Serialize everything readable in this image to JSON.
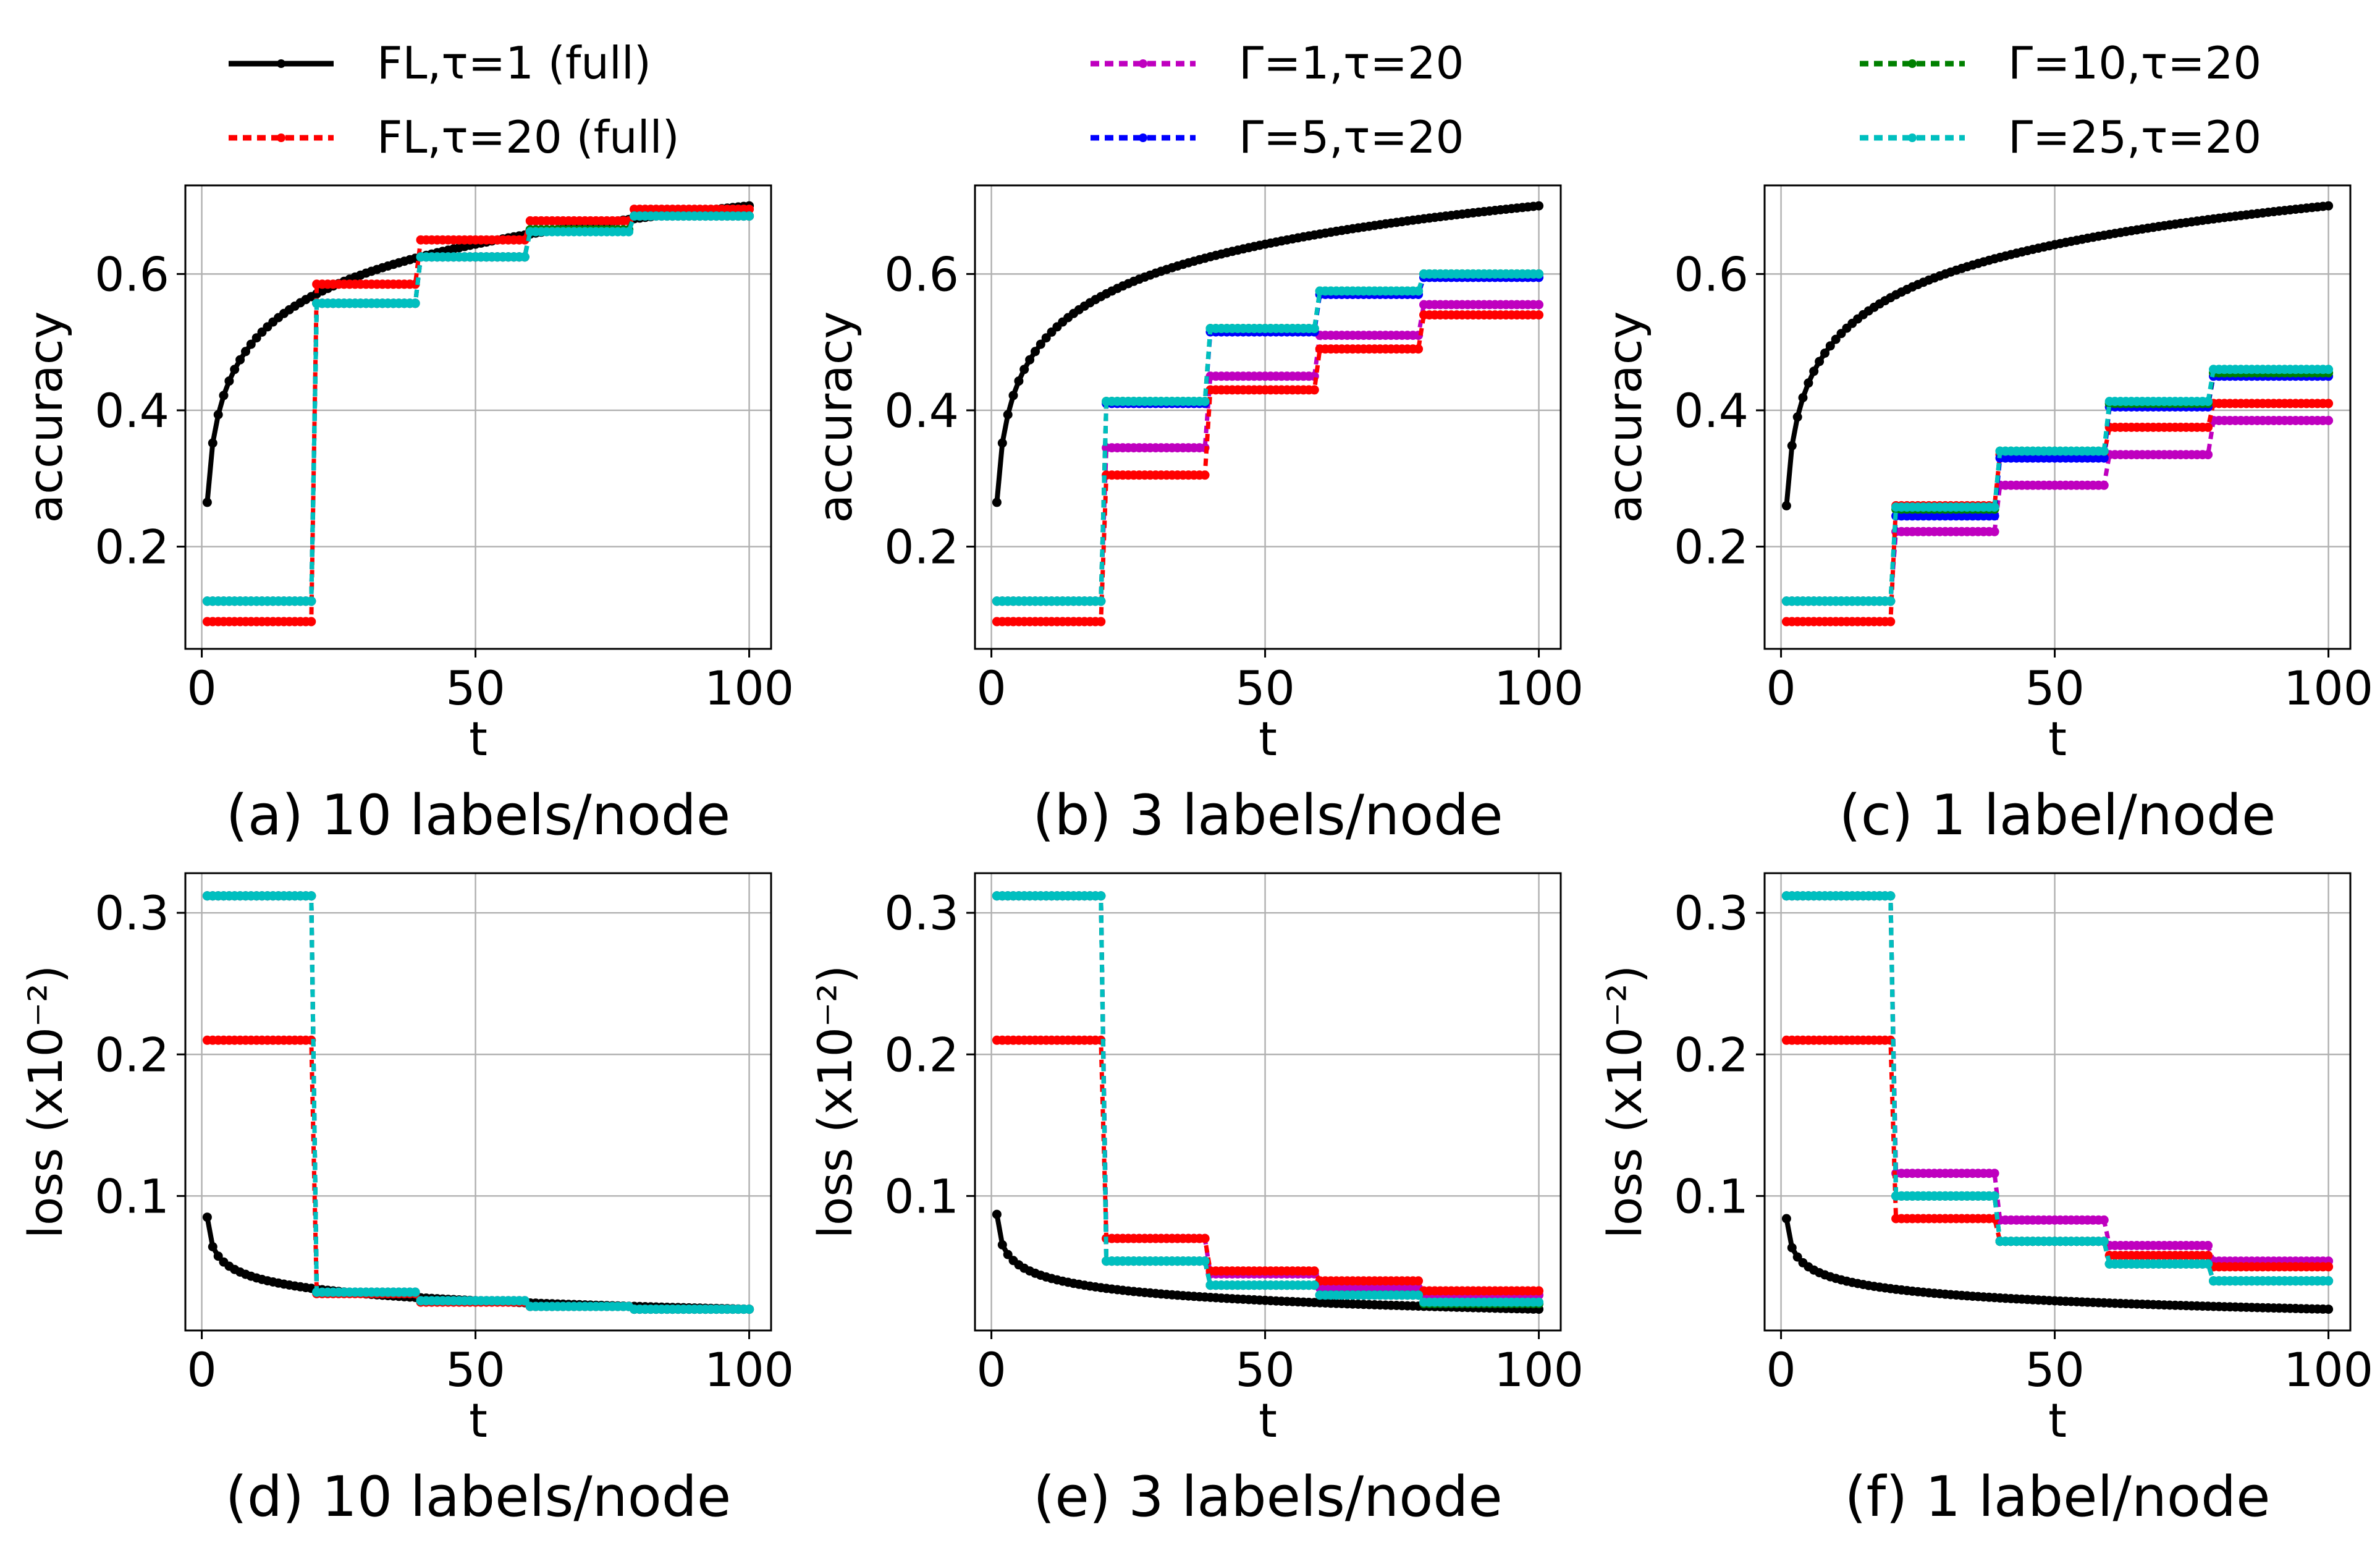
{
  "legend": [
    {
      "label": "FL,τ=1 (full)",
      "color": "#000000",
      "style": "solid"
    },
    {
      "label": "FL,τ=20 (full)",
      "color": "#ff0000",
      "style": "dotted"
    },
    {
      "label": "Γ=1,τ=20",
      "color": "#bf00bf",
      "style": "dotted"
    },
    {
      "label": "Γ=5,τ=20",
      "color": "#0000ff",
      "style": "dotted"
    },
    {
      "label": "Γ=10,τ=20",
      "color": "#008000",
      "style": "dotted"
    },
    {
      "label": "Γ=25,τ=20",
      "color": "#00bfbf",
      "style": "dotted"
    }
  ],
  "chart_data": [
    {
      "type": "line",
      "caption": "(a) 10 labels/node",
      "xlabel": "t",
      "ylabel": "accuracy",
      "xlim": [
        -3,
        104
      ],
      "ylim": [
        0.05,
        0.73
      ],
      "xticks": [
        0,
        50,
        100
      ],
      "yticks": [
        0.2,
        0.4,
        0.6
      ],
      "grid": true,
      "metric": "acc",
      "series": [
        {
          "key": "fl1",
          "name": "FL,τ=1 (full)",
          "color": "#000000",
          "kind": "curve",
          "start": 0.265,
          "end": 0.7
        },
        {
          "key": "fl20",
          "name": "FL,τ=20 (full)",
          "color": "#ff0000",
          "kind": "step",
          "steps": [
            0.09,
            0.585,
            0.65,
            0.678,
            0.695
          ]
        },
        {
          "key": "g1",
          "name": "Γ=1,τ=20",
          "color": "#bf00bf",
          "kind": "step",
          "steps": [
            0.12,
            0.557,
            0.625,
            0.665,
            0.685
          ]
        },
        {
          "key": "g5",
          "name": "Γ=5,τ=20",
          "color": "#0000ff",
          "kind": "step",
          "steps": [
            0.12,
            0.557,
            0.625,
            0.665,
            0.685
          ]
        },
        {
          "key": "g10",
          "name": "Γ=10,τ=20",
          "color": "#008000",
          "kind": "step",
          "steps": [
            0.12,
            0.557,
            0.625,
            0.665,
            0.685
          ]
        },
        {
          "key": "g25",
          "name": "Γ=25,τ=20",
          "color": "#00bfbf",
          "kind": "step",
          "steps": [
            0.12,
            0.557,
            0.625,
            0.662,
            0.685
          ]
        }
      ]
    },
    {
      "type": "line",
      "caption": "(b) 3 labels/node",
      "xlabel": "t",
      "ylabel": "accuracy",
      "xlim": [
        -3,
        104
      ],
      "ylim": [
        0.05,
        0.73
      ],
      "xticks": [
        0,
        50,
        100
      ],
      "yticks": [
        0.2,
        0.4,
        0.6
      ],
      "grid": true,
      "metric": "acc",
      "series": [
        {
          "key": "fl1",
          "name": "FL,τ=1 (full)",
          "color": "#000000",
          "kind": "curve",
          "start": 0.265,
          "end": 0.7
        },
        {
          "key": "fl20",
          "name": "FL,τ=20 (full)",
          "color": "#ff0000",
          "kind": "step",
          "steps": [
            0.09,
            0.305,
            0.43,
            0.49,
            0.54
          ]
        },
        {
          "key": "g1",
          "name": "Γ=1,τ=20",
          "color": "#bf00bf",
          "kind": "step",
          "steps": [
            0.12,
            0.345,
            0.45,
            0.51,
            0.555
          ]
        },
        {
          "key": "g5",
          "name": "Γ=5,τ=20",
          "color": "#0000ff",
          "kind": "step",
          "steps": [
            0.12,
            0.41,
            0.515,
            0.57,
            0.595
          ]
        },
        {
          "key": "g10",
          "name": "Γ=10,τ=20",
          "color": "#008000",
          "kind": "step",
          "steps": [
            0.12,
            0.413,
            0.52,
            0.575,
            0.6
          ]
        },
        {
          "key": "g25",
          "name": "Γ=25,τ=20",
          "color": "#00bfbf",
          "kind": "step",
          "steps": [
            0.12,
            0.413,
            0.52,
            0.575,
            0.6
          ]
        }
      ]
    },
    {
      "type": "line",
      "caption": "(c) 1 label/node",
      "xlabel": "t",
      "ylabel": "accuracy",
      "xlim": [
        -3,
        104
      ],
      "ylim": [
        0.05,
        0.73
      ],
      "xticks": [
        0,
        50,
        100
      ],
      "yticks": [
        0.2,
        0.4,
        0.6
      ],
      "grid": true,
      "metric": "acc",
      "series": [
        {
          "key": "fl1",
          "name": "FL,τ=1 (full)",
          "color": "#000000",
          "kind": "curve",
          "start": 0.26,
          "end": 0.7
        },
        {
          "key": "fl20",
          "name": "FL,τ=20 (full)",
          "color": "#ff0000",
          "kind": "step",
          "steps": [
            0.09,
            0.26,
            0.335,
            0.375,
            0.41
          ]
        },
        {
          "key": "g1",
          "name": "Γ=1,τ=20",
          "color": "#bf00bf",
          "kind": "step",
          "steps": [
            0.12,
            0.222,
            0.29,
            0.335,
            0.385
          ]
        },
        {
          "key": "g5",
          "name": "Γ=5,τ=20",
          "color": "#0000ff",
          "kind": "step",
          "steps": [
            0.12,
            0.245,
            0.33,
            0.405,
            0.45
          ]
        },
        {
          "key": "g10",
          "name": "Γ=10,τ=20",
          "color": "#008000",
          "kind": "step",
          "steps": [
            0.12,
            0.255,
            0.34,
            0.41,
            0.455
          ]
        },
        {
          "key": "g25",
          "name": "Γ=25,τ=20",
          "color": "#00bfbf",
          "kind": "step",
          "steps": [
            0.12,
            0.258,
            0.34,
            0.413,
            0.46
          ]
        }
      ]
    },
    {
      "type": "line",
      "caption": "(d) 10 labels/node",
      "xlabel": "t",
      "ylabel": "loss (x10⁻²)",
      "xlim": [
        -3,
        104
      ],
      "ylim": [
        0.005,
        0.328
      ],
      "xticks": [
        0,
        50,
        100
      ],
      "yticks": [
        0.1,
        0.2,
        0.3
      ],
      "grid": true,
      "metric": "loss",
      "series": [
        {
          "key": "fl1",
          "name": "FL,τ=1 (full)",
          "color": "#000000",
          "kind": "curve",
          "start": 0.085,
          "end": 0.02
        },
        {
          "key": "fl20",
          "name": "FL,τ=20 (full)",
          "color": "#ff0000",
          "kind": "step",
          "steps": [
            0.21,
            0.031,
            0.025,
            0.022,
            0.02
          ]
        },
        {
          "key": "g1",
          "name": "Γ=1,τ=20",
          "color": "#bf00bf",
          "kind": "step",
          "steps": [
            0.312,
            0.032,
            0.026,
            0.022,
            0.02
          ]
        },
        {
          "key": "g5",
          "name": "Γ=5,τ=20",
          "color": "#0000ff",
          "kind": "step",
          "steps": [
            0.312,
            0.032,
            0.026,
            0.022,
            0.02
          ]
        },
        {
          "key": "g10",
          "name": "Γ=10,τ=20",
          "color": "#008000",
          "kind": "step",
          "steps": [
            0.312,
            0.032,
            0.026,
            0.022,
            0.02
          ]
        },
        {
          "key": "g25",
          "name": "Γ=25,τ=20",
          "color": "#00bfbf",
          "kind": "step",
          "steps": [
            0.312,
            0.032,
            0.026,
            0.022,
            0.02
          ]
        }
      ]
    },
    {
      "type": "line",
      "caption": "(e) 3 labels/node",
      "xlabel": "t",
      "ylabel": "loss (x10⁻²)",
      "xlim": [
        -3,
        104
      ],
      "ylim": [
        0.005,
        0.328
      ],
      "xticks": [
        0,
        50,
        100
      ],
      "yticks": [
        0.1,
        0.2,
        0.3
      ],
      "grid": true,
      "metric": "loss",
      "series": [
        {
          "key": "fl1",
          "name": "FL,τ=1 (full)",
          "color": "#000000",
          "kind": "curve",
          "start": 0.087,
          "end": 0.02
        },
        {
          "key": "fl20",
          "name": "FL,τ=20 (full)",
          "color": "#ff0000",
          "kind": "step",
          "steps": [
            0.21,
            0.07,
            0.047,
            0.04,
            0.033
          ]
        },
        {
          "key": "g1",
          "name": "Γ=1,τ=20",
          "color": "#bf00bf",
          "kind": "step",
          "steps": [
            0.312,
            0.07,
            0.045,
            0.035,
            0.03
          ]
        },
        {
          "key": "g5",
          "name": "Γ=5,τ=20",
          "color": "#0000ff",
          "kind": "step",
          "steps": [
            0.312,
            0.054,
            0.037,
            0.03,
            0.024
          ]
        },
        {
          "key": "g10",
          "name": "Γ=10,τ=20",
          "color": "#008000",
          "kind": "step",
          "steps": [
            0.312,
            0.054,
            0.037,
            0.03,
            0.024
          ]
        },
        {
          "key": "g25",
          "name": "Γ=25,τ=20",
          "color": "#00bfbf",
          "kind": "step",
          "steps": [
            0.312,
            0.054,
            0.037,
            0.03,
            0.025
          ]
        }
      ]
    },
    {
      "type": "line",
      "caption": "(f) 1 label/node",
      "xlabel": "t",
      "ylabel": "loss (x10⁻²)",
      "xlim": [
        -3,
        104
      ],
      "ylim": [
        0.005,
        0.328
      ],
      "xticks": [
        0,
        50,
        100
      ],
      "yticks": [
        0.1,
        0.2,
        0.3
      ],
      "grid": true,
      "metric": "loss",
      "series": [
        {
          "key": "fl1",
          "name": "FL,τ=1 (full)",
          "color": "#000000",
          "kind": "curve",
          "start": 0.084,
          "end": 0.02
        },
        {
          "key": "fl20",
          "name": "FL,τ=20 (full)",
          "color": "#ff0000",
          "kind": "step",
          "steps": [
            0.21,
            0.084,
            0.068,
            0.058,
            0.05
          ]
        },
        {
          "key": "g1",
          "name": "Γ=1,τ=20",
          "color": "#bf00bf",
          "kind": "step",
          "steps": [
            0.312,
            0.116,
            0.083,
            0.065,
            0.054
          ]
        },
        {
          "key": "g5",
          "name": "Γ=5,τ=20",
          "color": "#0000ff",
          "kind": "step",
          "steps": [
            0.312,
            0.1,
            0.068,
            0.052,
            0.04
          ]
        },
        {
          "key": "g10",
          "name": "Γ=10,τ=20",
          "color": "#008000",
          "kind": "step",
          "steps": [
            0.312,
            0.1,
            0.068,
            0.052,
            0.04
          ]
        },
        {
          "key": "g25",
          "name": "Γ=25,τ=20",
          "color": "#00bfbf",
          "kind": "step",
          "steps": [
            0.312,
            0.1,
            0.068,
            0.052,
            0.04
          ]
        }
      ]
    }
  ]
}
